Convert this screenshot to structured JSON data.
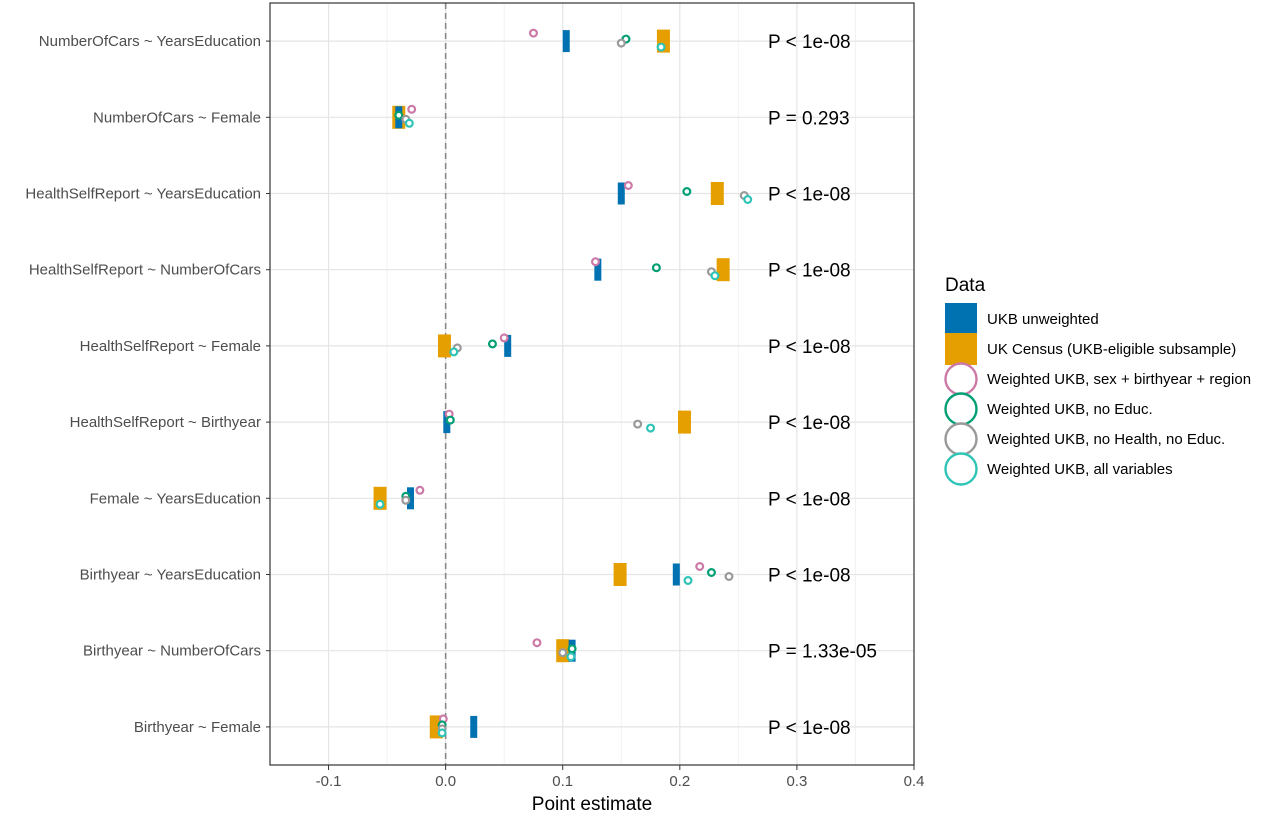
{
  "chart_data": {
    "type": "scatter",
    "xlabel": "Point estimate",
    "xlim": [
      -0.15,
      0.4
    ],
    "xticks": [
      -0.1,
      0.0,
      0.1,
      0.2,
      0.3,
      0.4
    ],
    "xtick_labels": [
      "-0.1",
      "0.0",
      "0.1",
      "0.2",
      "0.3",
      "0.4"
    ],
    "reference_line": 0,
    "grid": true,
    "legend": {
      "title": "Data",
      "position": "right",
      "items": [
        {
          "label": "UKB unweighted",
          "shape": "bar",
          "color": "#0072B2"
        },
        {
          "label": "UK Census (UKB-eligible subsample)",
          "shape": "bar",
          "color": "#E69F00"
        },
        {
          "label": "Weighted UKB, sex + birthyear + region",
          "shape": "ring",
          "color": "#CC79A7"
        },
        {
          "label": "Weighted UKB, no Educ.",
          "shape": "ring",
          "color": "#009E73"
        },
        {
          "label": "Weighted UKB, no Health, no Educ.",
          "shape": "ring",
          "color": "#999999"
        },
        {
          "label": "Weighted UKB, all variables",
          "shape": "ring",
          "color": "#2EC4B6"
        }
      ]
    },
    "rows": [
      {
        "label": "NumberOfCars ~ YearsEducation",
        "p": "P < 1e-08",
        "values": [
          0.103,
          0.186,
          0.075,
          0.154,
          0.15,
          0.184
        ]
      },
      {
        "label": "NumberOfCars ~ Female",
        "p": "P = 0.293",
        "values": [
          -0.04,
          -0.04,
          -0.029,
          -0.04,
          -0.034,
          -0.031
        ]
      },
      {
        "label": "HealthSelfReport ~ YearsEducation",
        "p": "P < 1e-08",
        "values": [
          0.15,
          0.232,
          0.156,
          0.206,
          0.255,
          0.258
        ]
      },
      {
        "label": "HealthSelfReport ~ NumberOfCars",
        "p": "P < 1e-08",
        "values": [
          0.13,
          0.237,
          0.128,
          0.18,
          0.227,
          0.23
        ]
      },
      {
        "label": "HealthSelfReport ~ Female",
        "p": "P < 1e-08",
        "values": [
          0.053,
          -0.001,
          0.05,
          0.04,
          0.01,
          0.007
        ]
      },
      {
        "label": "HealthSelfReport ~ Birthyear",
        "p": "P < 1e-08",
        "values": [
          0.001,
          0.204,
          0.003,
          0.004,
          0.164,
          0.175
        ]
      },
      {
        "label": "Female ~ YearsEducation",
        "p": "P < 1e-08",
        "values": [
          -0.03,
          -0.056,
          -0.022,
          -0.034,
          -0.034,
          -0.056
        ]
      },
      {
        "label": "Birthyear ~ YearsEducation",
        "p": "P < 1e-08",
        "values": [
          0.197,
          0.149,
          0.217,
          0.227,
          0.242,
          0.207
        ]
      },
      {
        "label": "Birthyear ~ NumberOfCars",
        "p": "P = 1.33e-05",
        "values": [
          0.108,
          0.1,
          0.078,
          0.108,
          0.1,
          0.107
        ]
      },
      {
        "label": "Birthyear ~ Female",
        "p": "P < 1e-08",
        "values": [
          0.024,
          -0.008,
          -0.002,
          -0.003,
          -0.003,
          -0.003
        ]
      }
    ]
  }
}
